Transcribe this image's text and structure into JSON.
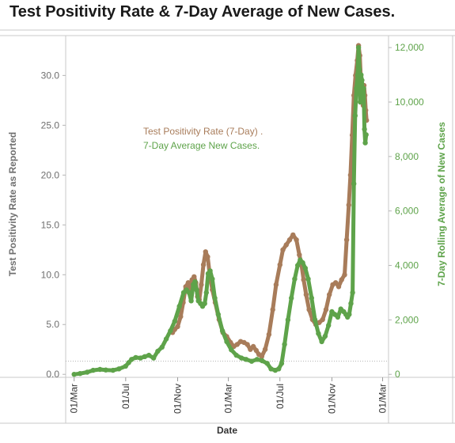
{
  "chart_data": {
    "type": "line",
    "title": "Test Positivity Rate & 7-Day Average of New Cases.",
    "xlabel": "Date",
    "ylabel_left": "Test Positivity Rate as Reported",
    "ylabel_right": "7-Day Rolling  Average of New Cases",
    "x_ticks": [
      "01/Mar",
      "01/Jul",
      "01/Nov",
      "01/Mar",
      "01/Jul",
      "01/Nov",
      "01/Mar"
    ],
    "x_tick_dates": [
      "2020-03-01",
      "2020-07-01",
      "2020-11-01",
      "2021-03-01",
      "2021-07-01",
      "2021-11-01",
      "2022-03-01"
    ],
    "y_left_ticks": [
      "0.0",
      "5.0",
      "10.0",
      "15.0",
      "20.0",
      "25.0",
      "30.0"
    ],
    "y_left_values": [
      0,
      5,
      10,
      15,
      20,
      25,
      30
    ],
    "y_right_ticks": [
      "0",
      "2,000",
      "4,000",
      "6,000",
      "8,000",
      "10,000",
      "12,000"
    ],
    "y_right_values": [
      0,
      2000,
      4000,
      6000,
      8000,
      10000,
      12000
    ],
    "ylim_left": [
      -0.3,
      34
    ],
    "ylim_right": [
      -110,
      12440
    ],
    "xlim": [
      "2020-02-10",
      "2022-03-15"
    ],
    "grid": false,
    "legend_position": "center-left",
    "colors": {
      "positivity": "#a87c5a",
      "cases": "#5ea34a",
      "left_axis_title": "#6f6f6f"
    },
    "series": [
      {
        "name": "Test Positivity Rate  (7-Day) .",
        "axis": "left",
        "color": "#a87c5a",
        "x": [
          "2020-10-20",
          "2020-10-25",
          "2020-11-01",
          "2020-11-08",
          "2020-11-14",
          "2020-11-20",
          "2020-11-26",
          "2020-12-01",
          "2020-12-05",
          "2020-12-10",
          "2020-12-14",
          "2020-12-18",
          "2020-12-22",
          "2020-12-27",
          "2021-01-01",
          "2021-01-06",
          "2021-01-11",
          "2021-01-16",
          "2021-01-22",
          "2021-01-29",
          "2021-02-07",
          "2021-02-16",
          "2021-02-25",
          "2021-03-06",
          "2021-03-14",
          "2021-03-22",
          "2021-03-30",
          "2021-04-07",
          "2021-04-15",
          "2021-04-22",
          "2021-04-29",
          "2021-05-06",
          "2021-05-12",
          "2021-05-19",
          "2021-05-27",
          "2021-06-05",
          "2021-06-14",
          "2021-06-22",
          "2021-07-01",
          "2021-07-08",
          "2021-07-16",
          "2021-07-24",
          "2021-08-01",
          "2021-08-09",
          "2021-08-16",
          "2021-08-21",
          "2021-08-26",
          "2021-09-01",
          "2021-09-08",
          "2021-09-16",
          "2021-09-24",
          "2021-10-02",
          "2021-10-10",
          "2021-10-18",
          "2021-10-26",
          "2021-11-03",
          "2021-11-10",
          "2021-11-17",
          "2021-11-24",
          "2021-12-01",
          "2021-12-06",
          "2021-12-11",
          "2021-12-15",
          "2021-12-19",
          "2021-12-23",
          "2021-12-27",
          "2021-12-31",
          "2022-01-03",
          "2022-01-06",
          "2022-01-08",
          "2022-01-10",
          "2022-01-12",
          "2022-01-14",
          "2022-01-16",
          "2022-01-18",
          "2022-01-20",
          "2022-01-22"
        ],
        "y": [
          4.2,
          4.5,
          4.8,
          5.8,
          7.2,
          8.8,
          9.2,
          8.5,
          9.5,
          9.8,
          9.2,
          7.8,
          7.5,
          9.0,
          11.0,
          12.3,
          11.8,
          10.0,
          8.5,
          7.2,
          5.5,
          4.2,
          3.8,
          3.2,
          2.8,
          3.0,
          3.3,
          3.2,
          3.0,
          2.5,
          2.8,
          2.4,
          2.0,
          1.8,
          2.5,
          4.0,
          6.5,
          9.0,
          11.0,
          12.5,
          13.0,
          13.5,
          14.0,
          13.5,
          12.0,
          11.0,
          9.5,
          8.0,
          6.5,
          5.5,
          5.0,
          5.2,
          5.5,
          6.5,
          8.0,
          9.0,
          9.2,
          8.8,
          9.5,
          10.0,
          13.5,
          17.0,
          20.0,
          24.0,
          28.0,
          30.0,
          31.5,
          33.0,
          32.0,
          30.0,
          29.0,
          28.5,
          27.0,
          29.0,
          28.0,
          26.5,
          25.5
        ]
      },
      {
        "name": "7-Day Average New Cases.",
        "axis": "right",
        "color": "#5ea34a",
        "x": [
          "2020-03-01",
          "2020-03-15",
          "2020-04-01",
          "2020-04-15",
          "2020-05-01",
          "2020-05-15",
          "2020-06-01",
          "2020-06-15",
          "2020-07-01",
          "2020-07-08",
          "2020-07-15",
          "2020-07-25",
          "2020-08-05",
          "2020-08-15",
          "2020-08-25",
          "2020-09-05",
          "2020-09-15",
          "2020-09-25",
          "2020-10-05",
          "2020-10-15",
          "2020-10-25",
          "2020-11-05",
          "2020-11-15",
          "2020-11-22",
          "2020-11-28",
          "2020-12-03",
          "2020-12-08",
          "2020-12-12",
          "2020-12-16",
          "2020-12-20",
          "2020-12-25",
          "2020-12-30",
          "2021-01-04",
          "2021-01-08",
          "2021-01-12",
          "2021-01-17",
          "2021-01-22",
          "2021-01-28",
          "2021-02-05",
          "2021-02-15",
          "2021-02-25",
          "2021-03-08",
          "2021-03-20",
          "2021-04-01",
          "2021-04-12",
          "2021-04-25",
          "2021-05-08",
          "2021-05-20",
          "2021-06-01",
          "2021-06-10",
          "2021-06-20",
          "2021-06-28",
          "2021-07-05",
          "2021-07-12",
          "2021-07-20",
          "2021-07-28",
          "2021-08-05",
          "2021-08-12",
          "2021-08-18",
          "2021-08-24",
          "2021-08-30",
          "2021-09-06",
          "2021-09-14",
          "2021-09-22",
          "2021-09-30",
          "2021-10-08",
          "2021-10-16",
          "2021-10-24",
          "2021-11-01",
          "2021-11-08",
          "2021-11-15",
          "2021-11-22",
          "2021-11-29",
          "2021-12-04",
          "2021-12-08",
          "2021-12-12",
          "2021-12-16",
          "2021-12-20",
          "2021-12-23",
          "2021-12-26",
          "2021-12-29",
          "2022-01-01",
          "2022-01-03",
          "2022-01-05",
          "2022-01-07",
          "2022-01-09",
          "2022-01-11",
          "2022-01-13",
          "2022-01-15",
          "2022-01-17",
          "2022-01-19",
          "2022-01-21"
        ],
        "y": [
          0,
          30,
          80,
          150,
          180,
          160,
          150,
          200,
          300,
          430,
          550,
          620,
          600,
          650,
          700,
          600,
          850,
          1000,
          1300,
          1600,
          1950,
          2500,
          3000,
          3100,
          3000,
          2700,
          3300,
          3400,
          3100,
          2700,
          2600,
          2500,
          2600,
          3000,
          3700,
          3800,
          3500,
          2800,
          2200,
          1600,
          1200,
          900,
          700,
          600,
          550,
          480,
          550,
          500,
          400,
          200,
          150,
          200,
          400,
          1100,
          2000,
          2800,
          3500,
          4000,
          4200,
          4100,
          3900,
          3500,
          2800,
          2000,
          1500,
          1200,
          1400,
          1800,
          2300,
          2200,
          2100,
          2400,
          2300,
          2200,
          2100,
          2200,
          2600,
          3000,
          7000,
          9500,
          10500,
          11000,
          12000,
          11200,
          10000,
          11000,
          10800,
          10200,
          10500,
          9000,
          8500,
          8800
        ]
      }
    ]
  }
}
